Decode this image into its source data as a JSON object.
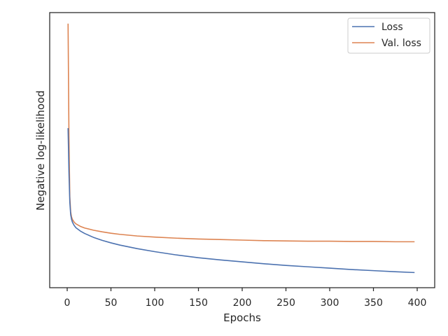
{
  "chart_data": {
    "type": "line",
    "xlabel": "Epochs",
    "ylabel": "Negative log-likelihood",
    "xlim": [
      -20,
      420
    ],
    "ylim": [
      0,
      1
    ],
    "x_ticks": [
      0,
      50,
      100,
      150,
      200,
      250,
      300,
      350,
      400
    ],
    "y_ticks_visible": false,
    "grid": false,
    "legend_position": "top-right",
    "series": [
      {
        "name": "Loss",
        "color": "#4c72b0",
        "x": [
          1,
          2,
          3,
          4,
          5,
          6,
          8,
          10,
          15,
          20,
          30,
          40,
          50,
          60,
          80,
          100,
          125,
          150,
          175,
          200,
          225,
          250,
          275,
          300,
          325,
          350,
          375,
          397
        ],
        "y": [
          0.58,
          0.42,
          0.31,
          0.265,
          0.248,
          0.238,
          0.226,
          0.218,
          0.206,
          0.197,
          0.183,
          0.172,
          0.163,
          0.155,
          0.142,
          0.131,
          0.119,
          0.109,
          0.101,
          0.094,
          0.087,
          0.081,
          0.076,
          0.071,
          0.066,
          0.062,
          0.058,
          0.055
        ]
      },
      {
        "name": "Val. loss",
        "color": "#dd8452",
        "x": [
          1,
          2,
          3,
          4,
          5,
          6,
          8,
          10,
          15,
          20,
          30,
          40,
          50,
          60,
          80,
          100,
          125,
          150,
          175,
          200,
          225,
          250,
          275,
          300,
          325,
          350,
          375,
          397
        ],
        "y": [
          0.96,
          0.55,
          0.33,
          0.275,
          0.257,
          0.248,
          0.238,
          0.232,
          0.223,
          0.217,
          0.209,
          0.203,
          0.198,
          0.194,
          0.188,
          0.184,
          0.18,
          0.177,
          0.175,
          0.173,
          0.171,
          0.17,
          0.169,
          0.169,
          0.168,
          0.168,
          0.167,
          0.167
        ]
      }
    ]
  }
}
